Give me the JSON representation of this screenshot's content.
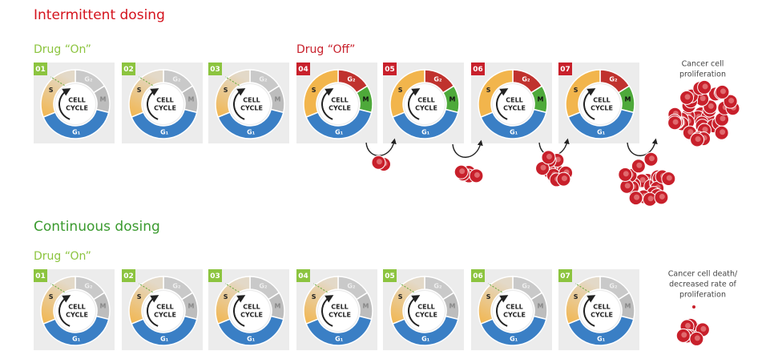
{
  "sections": [
    {
      "title": "Intermittent dosing",
      "title_color": "#d4121c",
      "groups": [
        {
          "label": "Drug “On”",
          "color": "#8cc43f",
          "phase_colors": "off",
          "panels": [
            "01",
            "02",
            "03"
          ]
        },
        {
          "label": "Drug “Off”",
          "color": "#c8202b",
          "phase_colors": "on",
          "panels": [
            "04",
            "05",
            "06",
            "07"
          ]
        }
      ],
      "outcome": [
        "Cancer cell",
        "proliferation"
      ]
    },
    {
      "title": "Continuous dosing",
      "title_color": "#3a9a2e",
      "groups": [
        {
          "label": "Drug “On”",
          "color": "#8cc43f",
          "phase_colors": "off",
          "panels": [
            "01",
            "02",
            "03",
            "04",
            "05",
            "06",
            "07"
          ]
        }
      ],
      "outcome": [
        "Cancer cell death/",
        "decreased rate of",
        "proliferation"
      ]
    }
  ],
  "cycle_labels": {
    "center": [
      "CELL",
      "CYCLE"
    ],
    "s": "S",
    "g2": "G₂",
    "m": "M",
    "g1": "G₁"
  }
}
